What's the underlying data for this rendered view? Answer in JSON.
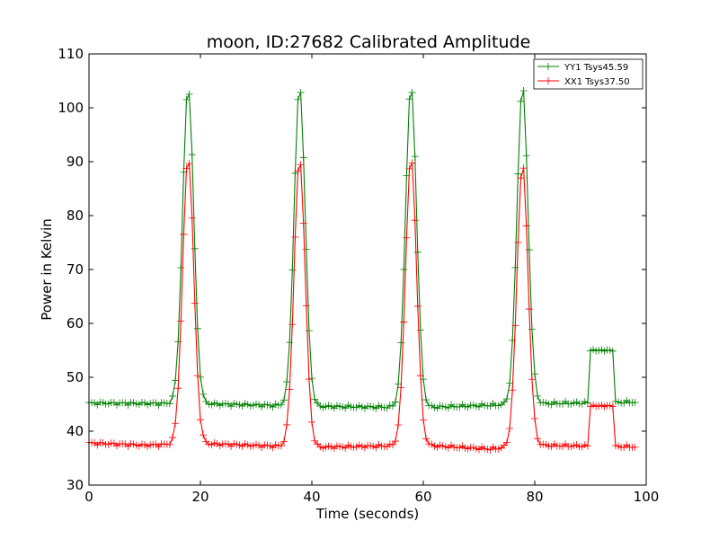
{
  "chart_data": {
    "type": "line",
    "title": "moon, ID:27682 Calibrated Amplitude",
    "xlabel": "Time (seconds)",
    "ylabel": "Power in Kelvin",
    "xlim": [
      0,
      100
    ],
    "ylim": [
      30,
      110
    ],
    "xticks": [
      0,
      20,
      40,
      60,
      80,
      100
    ],
    "yticks": [
      30,
      40,
      50,
      60,
      70,
      80,
      90,
      100,
      110
    ],
    "grid": false,
    "legend_position": "top-right",
    "markers": "plus",
    "sample_step": 0.5,
    "x_range": [
      0,
      98
    ],
    "series": [
      {
        "name": "YY1 Tsys45.59",
        "color": "#008000",
        "baselines": [
          [
            0,
            45.2
          ],
          [
            20,
            45.1
          ],
          [
            40,
            44.6
          ],
          [
            60,
            44.4
          ],
          [
            80,
            45.1
          ],
          [
            98,
            45.4
          ]
        ],
        "peaks": [
          [
            17.8,
            104.0
          ],
          [
            37.8,
            104.0
          ],
          [
            57.8,
            104.0
          ],
          [
            77.8,
            104.0
          ]
        ],
        "plateau": {
          "x_start": 90.0,
          "x_end": 94.0,
          "value": 55.0
        },
        "peak_width": 1.0
      },
      {
        "name": "XX1 Tsys37.50",
        "color": "#ff0000",
        "baselines": [
          [
            0,
            37.8
          ],
          [
            10,
            37.4
          ],
          [
            20,
            37.7
          ],
          [
            40,
            37.0
          ],
          [
            60,
            37.4
          ],
          [
            72,
            36.7
          ],
          [
            80,
            37.4
          ],
          [
            98,
            37.1
          ]
        ],
        "peaks": [
          [
            17.8,
            91.0
          ],
          [
            37.8,
            90.5
          ],
          [
            57.8,
            90.8
          ],
          [
            77.8,
            89.5
          ]
        ],
        "plateau": {
          "x_start": 90.0,
          "x_end": 94.0,
          "value": 44.7
        },
        "peak_width": 1.0
      }
    ]
  }
}
